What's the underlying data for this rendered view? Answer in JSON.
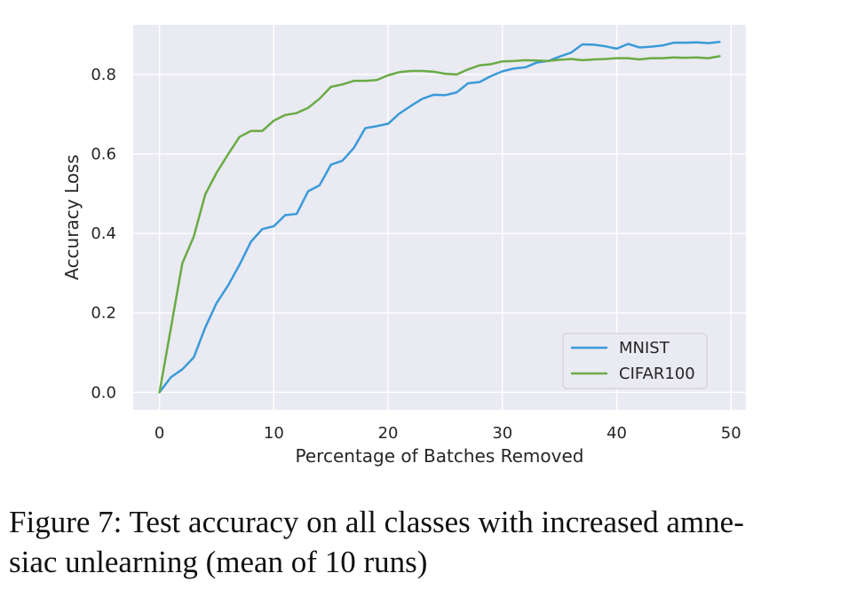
{
  "chart_data": {
    "type": "line",
    "xlabel": "Percentage of Batches Removed",
    "ylabel": "Accuracy Loss",
    "xlim": [
      -2.3,
      51.3
    ],
    "ylim": [
      -0.044,
      0.925
    ],
    "xticks": [
      0,
      10,
      20,
      30,
      40,
      50
    ],
    "yticks": [
      0.0,
      0.2,
      0.4,
      0.6,
      0.8
    ],
    "xtick_labels": [
      "0",
      "10",
      "20",
      "30",
      "40",
      "50"
    ],
    "ytick_labels": [
      "0.0",
      "0.2",
      "0.4",
      "0.6",
      "0.8"
    ],
    "grid": true,
    "legend_position": "lower-right",
    "x": [
      0,
      1,
      2,
      3,
      4,
      5,
      6,
      7,
      8,
      9,
      10,
      11,
      12,
      13,
      14,
      15,
      16,
      17,
      18,
      19,
      20,
      21,
      22,
      23,
      24,
      25,
      26,
      27,
      28,
      29,
      30,
      31,
      32,
      33,
      34,
      35,
      36,
      37,
      38,
      39,
      40,
      41,
      42,
      43,
      44,
      45,
      46,
      47,
      48,
      49
    ],
    "series": [
      {
        "name": "MNIST",
        "color": "#3a9ad9",
        "values": [
          0.0,
          0.038,
          0.058,
          0.088,
          0.163,
          0.225,
          0.269,
          0.321,
          0.379,
          0.411,
          0.418,
          0.446,
          0.449,
          0.506,
          0.521,
          0.573,
          0.583,
          0.615,
          0.665,
          0.67,
          0.676,
          0.702,
          0.721,
          0.739,
          0.749,
          0.748,
          0.755,
          0.778,
          0.781,
          0.796,
          0.808,
          0.815,
          0.818,
          0.83,
          0.834,
          0.845,
          0.855,
          0.876,
          0.875,
          0.871,
          0.865,
          0.877,
          0.868,
          0.87,
          0.873,
          0.88,
          0.88,
          0.881,
          0.879,
          0.882
        ]
      },
      {
        "name": "CIFAR100",
        "color": "#6aab45",
        "values": [
          0.0,
          0.162,
          0.325,
          0.392,
          0.498,
          0.553,
          0.599,
          0.643,
          0.658,
          0.658,
          0.684,
          0.698,
          0.703,
          0.716,
          0.739,
          0.769,
          0.775,
          0.784,
          0.784,
          0.786,
          0.798,
          0.806,
          0.809,
          0.809,
          0.807,
          0.802,
          0.8,
          0.813,
          0.823,
          0.826,
          0.833,
          0.834,
          0.836,
          0.835,
          0.834,
          0.837,
          0.839,
          0.836,
          0.838,
          0.839,
          0.841,
          0.841,
          0.838,
          0.841,
          0.841,
          0.843,
          0.842,
          0.843,
          0.841,
          0.846
        ]
      }
    ]
  },
  "caption": {
    "line1": "Figure 7: Test accuracy on all classes with increased amne-",
    "line2": "siac unlearning (mean of 10 runs)"
  },
  "colors": {
    "plot_background": "#eaeaf2",
    "grid": "#ffffff",
    "text": "#262626"
  }
}
